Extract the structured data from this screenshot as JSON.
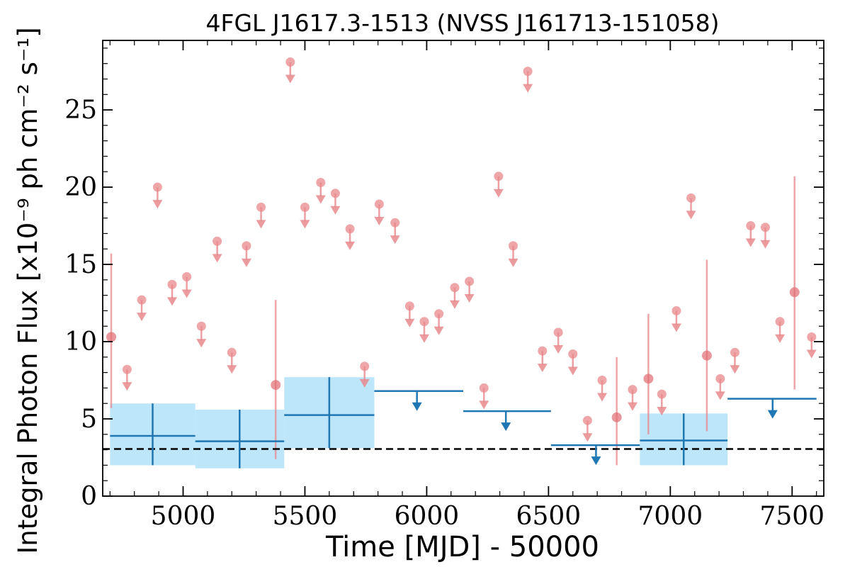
{
  "chart_data": {
    "type": "scatter",
    "title": "4FGL J1617.3-1513 (NVSS J161713-151058)",
    "xlabel": "Time [MJD] - 50000",
    "ylabel": "Integral Photon Flux [x10⁻⁹ ph cm⁻² s⁻¹]",
    "xlim": [
      4670,
      7630
    ],
    "ylim": [
      0,
      29.5
    ],
    "x_ticks": [
      5000,
      5500,
      6000,
      6500,
      7000,
      7500
    ],
    "y_ticks": [
      0,
      5,
      10,
      15,
      20,
      25
    ],
    "grid": false,
    "colors": {
      "fine_bins": "#e8888c",
      "coarse_bins": "#1f77b4",
      "coarse_band": "#bde6fb",
      "average": "#000000"
    },
    "average_flux": 3.05,
    "fine_bins_detections": [
      {
        "x": 4705,
        "y": 10.3,
        "y_low": 5.7,
        "y_high": 15.7
      },
      {
        "x": 5380,
        "y": 7.2,
        "y_low": 2.4,
        "y_high": 12.7
      },
      {
        "x": 6780,
        "y": 5.1,
        "y_low": 2.0,
        "y_high": 9.0
      },
      {
        "x": 6910,
        "y": 7.6,
        "y_low": 4.0,
        "y_high": 11.8
      },
      {
        "x": 7150,
        "y": 9.1,
        "y_low": 4.2,
        "y_high": 15.3
      },
      {
        "x": 7510,
        "y": 13.2,
        "y_low": 6.9,
        "y_high": 20.7
      }
    ],
    "fine_bins_upper_limits": [
      {
        "x": 4770,
        "y": 8.2
      },
      {
        "x": 4830,
        "y": 12.7
      },
      {
        "x": 4895,
        "y": 20.0
      },
      {
        "x": 4955,
        "y": 13.7
      },
      {
        "x": 5015,
        "y": 14.2
      },
      {
        "x": 5075,
        "y": 11.0
      },
      {
        "x": 5140,
        "y": 16.5
      },
      {
        "x": 5200,
        "y": 9.3
      },
      {
        "x": 5260,
        "y": 16.2
      },
      {
        "x": 5320,
        "y": 18.7
      },
      {
        "x": 5440,
        "y": 28.1
      },
      {
        "x": 5500,
        "y": 18.7
      },
      {
        "x": 5565,
        "y": 20.3
      },
      {
        "x": 5625,
        "y": 19.6
      },
      {
        "x": 5685,
        "y": 17.3
      },
      {
        "x": 5745,
        "y": 8.4
      },
      {
        "x": 5805,
        "y": 18.9
      },
      {
        "x": 5870,
        "y": 17.7
      },
      {
        "x": 5930,
        "y": 12.3
      },
      {
        "x": 5990,
        "y": 11.3
      },
      {
        "x": 6050,
        "y": 11.8
      },
      {
        "x": 6115,
        "y": 13.5
      },
      {
        "x": 6175,
        "y": 13.9
      },
      {
        "x": 6235,
        "y": 7.0
      },
      {
        "x": 6295,
        "y": 20.7
      },
      {
        "x": 6355,
        "y": 16.2
      },
      {
        "x": 6415,
        "y": 27.5
      },
      {
        "x": 6475,
        "y": 9.4
      },
      {
        "x": 6540,
        "y": 10.6
      },
      {
        "x": 6600,
        "y": 9.2
      },
      {
        "x": 6660,
        "y": 4.9
      },
      {
        "x": 6720,
        "y": 7.5
      },
      {
        "x": 6845,
        "y": 6.9
      },
      {
        "x": 6965,
        "y": 6.6
      },
      {
        "x": 7025,
        "y": 12.0
      },
      {
        "x": 7085,
        "y": 19.3
      },
      {
        "x": 7205,
        "y": 7.6
      },
      {
        "x": 7265,
        "y": 9.3
      },
      {
        "x": 7330,
        "y": 17.5
      },
      {
        "x": 7390,
        "y": 17.4
      },
      {
        "x": 7450,
        "y": 11.3
      },
      {
        "x": 7580,
        "y": 10.3
      }
    ],
    "coarse_bins_detections": [
      {
        "x_start": 4700,
        "x_end": 5050,
        "x": 4875,
        "y": 3.9,
        "y_low": 2.0,
        "y_high": 6.0
      },
      {
        "x_start": 5050,
        "x_end": 5415,
        "x": 5232,
        "y": 3.55,
        "y_low": 1.8,
        "y_high": 5.6
      },
      {
        "x_start": 5415,
        "x_end": 5785,
        "x": 5600,
        "y": 5.25,
        "y_low": 3.1,
        "y_high": 7.7
      },
      {
        "x_start": 6875,
        "x_end": 7235,
        "x": 7055,
        "y": 3.6,
        "y_low": 2.0,
        "y_high": 5.35
      }
    ],
    "coarse_bins_upper_limits": [
      {
        "x_start": 5785,
        "x_end": 6150,
        "x": 5960,
        "y": 6.8
      },
      {
        "x_start": 6150,
        "x_end": 6510,
        "x": 6325,
        "y": 5.5
      },
      {
        "x_start": 6510,
        "x_end": 6875,
        "x": 6695,
        "y": 3.3
      },
      {
        "x_start": 7235,
        "x_end": 7600,
        "x": 7420,
        "y": 6.3
      }
    ]
  }
}
